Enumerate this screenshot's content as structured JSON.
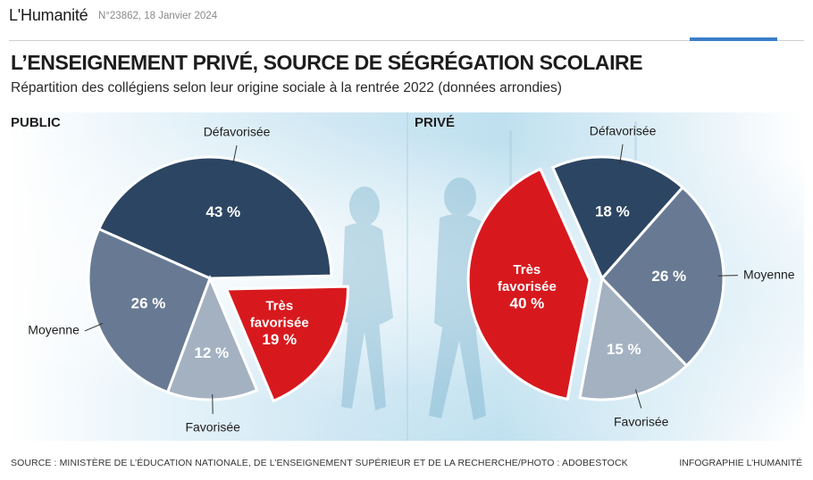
{
  "masthead": {
    "brand": "L'Humanité",
    "issue": "N°23862, 18 Janvier 2024"
  },
  "header": {
    "title": "L’ENSEIGNEMENT PRIVÉ, SOURCE DE SÉGRÉGATION SCOLAIRE",
    "subtitle": "Répartition des collégiens selon leur origine sociale à la rentrée 2022 (données arrondies)"
  },
  "colors": {
    "defavorisee": "#2c4562",
    "moyenne": "#687a93",
    "favorisee": "#a3b1c1",
    "tres_favorisee": "#d7191e"
  },
  "chart_data": [
    {
      "type": "pie",
      "title": "PUBLIC",
      "categories": [
        "Défavorisée",
        "Très favorisée",
        "Favorisée",
        "Moyenne"
      ],
      "values": [
        43,
        19,
        12,
        26
      ],
      "value_labels": [
        "43 %",
        "19 %",
        "12 %",
        "26 %"
      ],
      "unit": "%",
      "exploded": "Très favorisée",
      "slice_label_lines": [
        [
          "43 %"
        ],
        [
          "Très",
          "favorisée",
          "19 %"
        ],
        [
          "12 %"
        ],
        [
          "26 %"
        ]
      ],
      "callouts": {
        "Défavorisée": "Défavorisée",
        "Moyenne": "Moyenne",
        "Favorisée": "Favorisée"
      }
    },
    {
      "type": "pie",
      "title": "PRIVÉ",
      "categories": [
        "Défavorisée",
        "Moyenne",
        "Favorisée",
        "Très favorisée"
      ],
      "values": [
        18,
        26,
        15,
        40
      ],
      "value_labels": [
        "18 %",
        "26 %",
        "15 %",
        "40 %"
      ],
      "unit": "%",
      "exploded": "Très favorisée",
      "slice_label_lines": [
        [
          "18 %"
        ],
        [
          "26 %"
        ],
        [
          "15 %"
        ],
        [
          "Très",
          "favorisée",
          "40 %"
        ]
      ],
      "callouts": {
        "Défavorisée": "Défavorisée",
        "Moyenne": "Moyenne",
        "Favorisée": "Favorisée"
      }
    }
  ],
  "footer": {
    "source": "SOURCE : MINISTÈRE DE L’ÉDUCATION NATIONALE, DE L’ENSEIGNEMENT SUPÉRIEUR ET DE LA RECHERCHE/PHOTO : ADOBESTOCK",
    "credit": "INFOGRAPHIE L’HUMANITÉ"
  }
}
